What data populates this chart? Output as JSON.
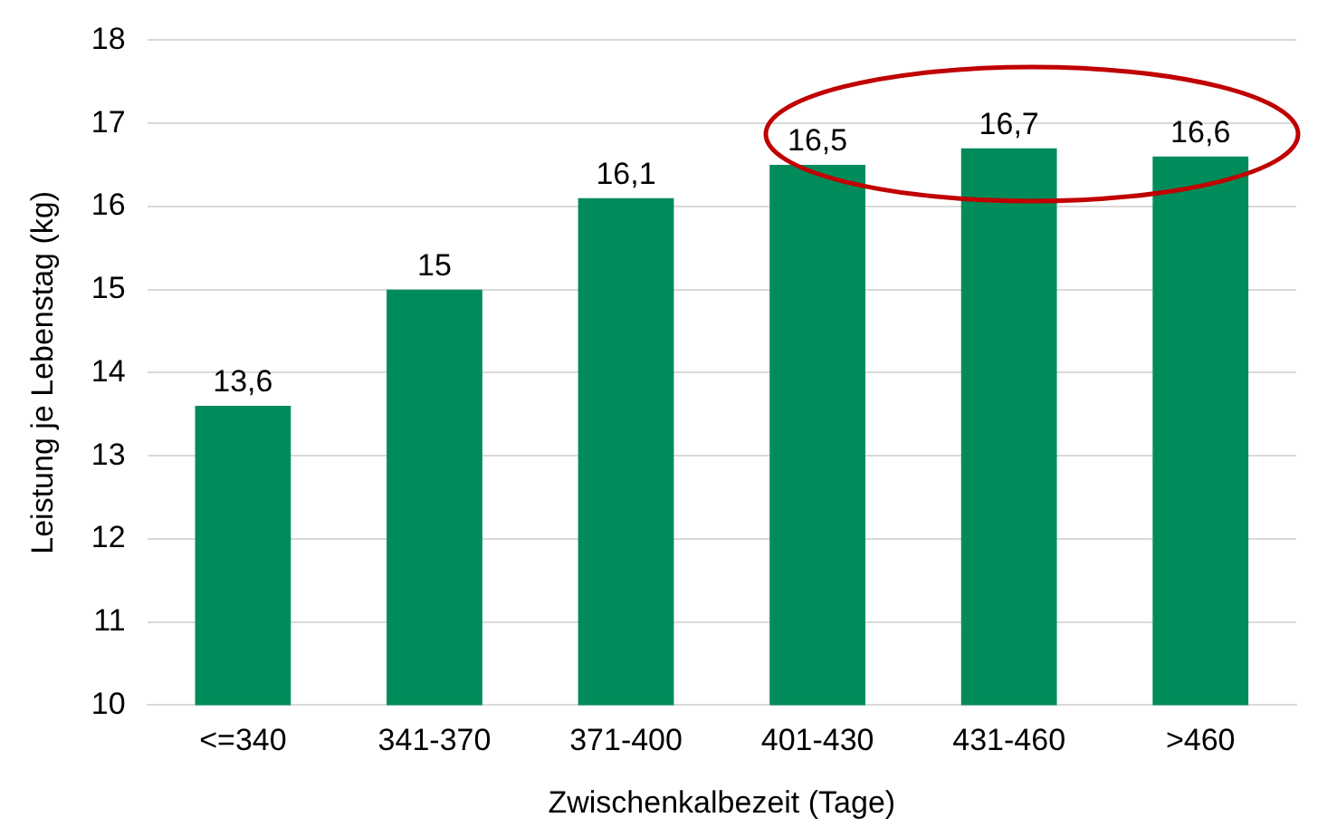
{
  "chart_data": {
    "type": "bar",
    "xlabel": "Zwischenkalbezeit (Tage)",
    "ylabel": "Leistung je Lebenstag (kg)",
    "categories": [
      "<=340",
      "341-370",
      "371-400",
      "401-430",
      "431-460",
      ">460"
    ],
    "values": [
      13.6,
      15,
      16.1,
      16.5,
      16.7,
      16.6
    ],
    "value_labels": [
      "13,6",
      "15",
      "16,1",
      "16,5",
      "16,7",
      "16,6"
    ],
    "color": "#008c5a",
    "ylim": [
      10,
      18
    ],
    "yticks": [
      10,
      11,
      12,
      13,
      14,
      15,
      16,
      17,
      18
    ],
    "grid": "y",
    "legend": false
  }
}
